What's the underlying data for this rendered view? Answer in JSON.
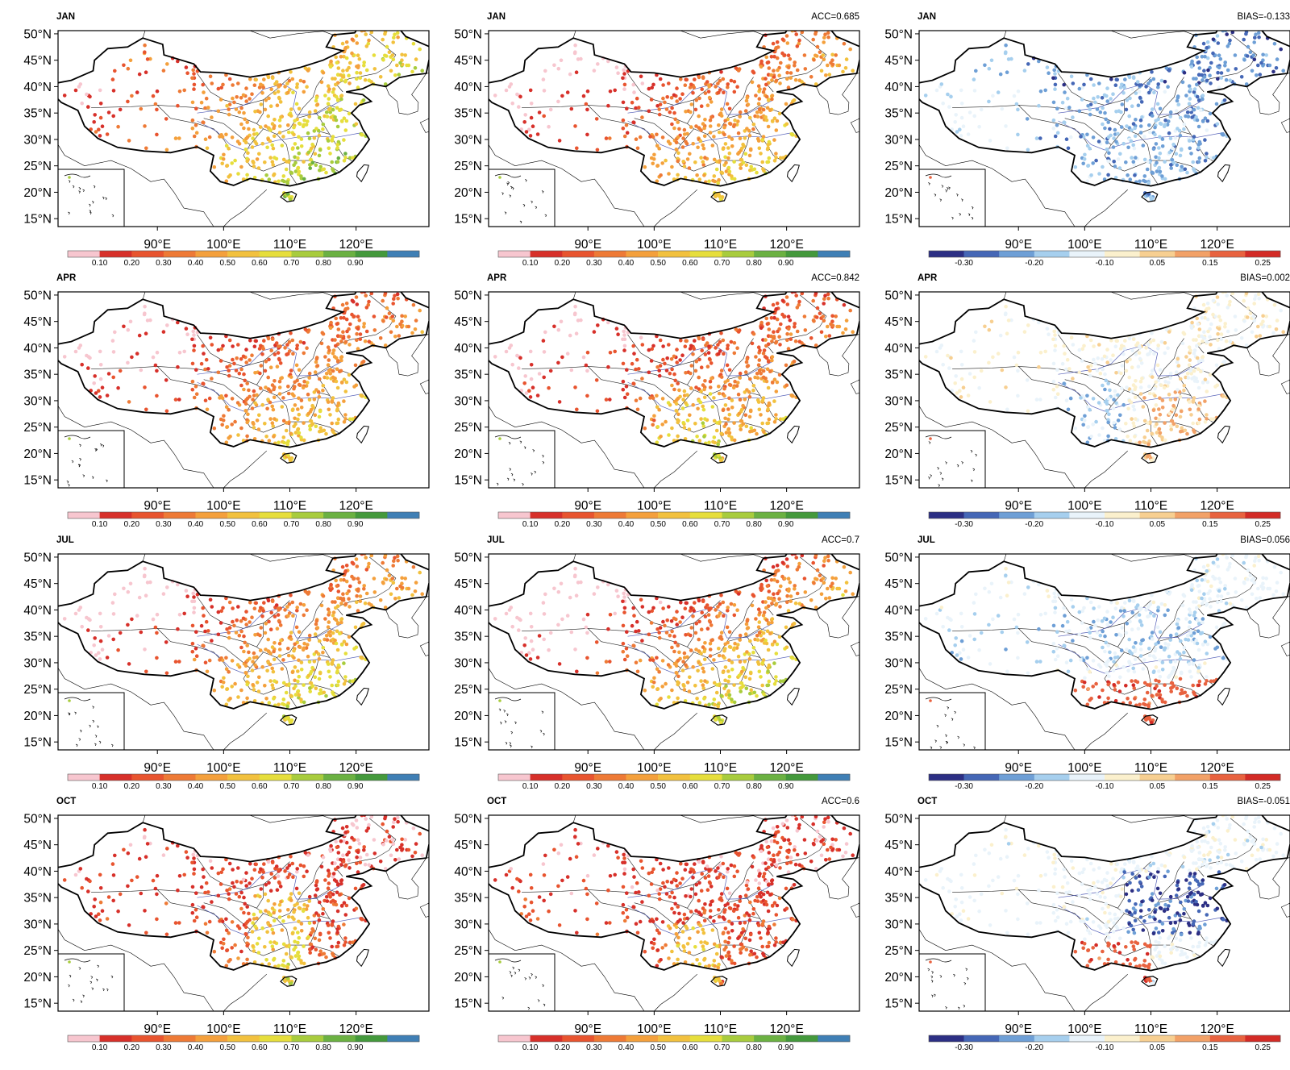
{
  "colors": {
    "skill": [
      "#f7c6cf",
      "#d7302a",
      "#e8542f",
      "#ee7a36",
      "#f4a03c",
      "#f2c13e",
      "#e6de3c",
      "#a8cc3d",
      "#6bb142",
      "#44993c",
      "#3f7fb5"
    ],
    "bias": [
      "#2c2f84",
      "#4567b6",
      "#6e9fd6",
      "#a6cfee",
      "#e9f3fa",
      "#fbf0cd",
      "#f7cf91",
      "#f2a167",
      "#e8623f",
      "#d32b26"
    ],
    "land": "#ffffff",
    "border": "#000000",
    "river": "#5560b8"
  },
  "axes": {
    "lat_labels": [
      "50°N",
      "45°N",
      "40°N",
      "35°N",
      "30°N",
      "25°N",
      "20°N",
      "15°N"
    ],
    "lon_labels": [
      "90°E",
      "100°E",
      "110°E",
      "120°E"
    ]
  },
  "colorbars": {
    "skill_ticks": [
      "0.10",
      "0.20",
      "0.30",
      "0.40",
      "0.50",
      "0.60",
      "0.70",
      "0.80",
      "0.90"
    ],
    "bias_ticks": [
      "-0.30",
      "-0.20",
      "-0.10",
      "0.05",
      "0.15",
      "0.25"
    ]
  },
  "panels": [
    {
      "month": "JAN",
      "stat": "",
      "kind": "skill",
      "mode": "jan_obs"
    },
    {
      "month": "JAN",
      "stat": "ACC=0.685",
      "kind": "skill",
      "mode": "jan_fcst"
    },
    {
      "month": "JAN",
      "stat": "BIAS=-0.133",
      "kind": "bias",
      "mode": "jan_bias"
    },
    {
      "month": "APR",
      "stat": "",
      "kind": "skill",
      "mode": "apr_obs"
    },
    {
      "month": "APR",
      "stat": "ACC=0.842",
      "kind": "skill",
      "mode": "apr_fcst"
    },
    {
      "month": "APR",
      "stat": "BIAS=0.002",
      "kind": "bias",
      "mode": "apr_bias"
    },
    {
      "month": "JUL",
      "stat": "",
      "kind": "skill",
      "mode": "jul_obs"
    },
    {
      "month": "JUL",
      "stat": "ACC=0.7",
      "kind": "skill",
      "mode": "jul_fcst"
    },
    {
      "month": "JUL",
      "stat": "BIAS=0.056",
      "kind": "bias",
      "mode": "jul_bias"
    },
    {
      "month": "OCT",
      "stat": "",
      "kind": "skill",
      "mode": "oct_obs"
    },
    {
      "month": "OCT",
      "stat": "ACC=0.6",
      "kind": "skill",
      "mode": "oct_fcst"
    },
    {
      "month": "OCT",
      "stat": "BIAS=-0.051",
      "kind": "bias",
      "mode": "oct_bias"
    }
  ]
}
